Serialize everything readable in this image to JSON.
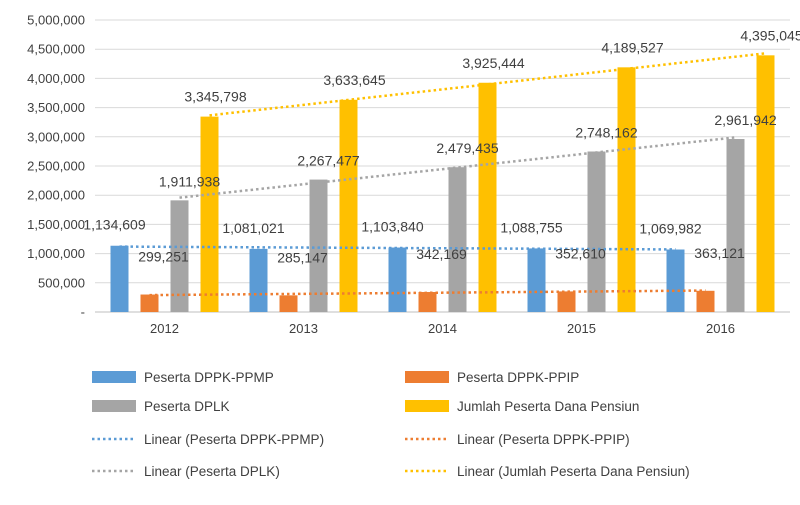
{
  "chart_data": {
    "type": "bar",
    "title": "",
    "xlabel": "",
    "ylabel": "",
    "categories": [
      "2012",
      "2013",
      "2014",
      "2015",
      "2016"
    ],
    "ylim": [
      0,
      5000000
    ],
    "yticks": [
      0,
      500000,
      1000000,
      1500000,
      2000000,
      2500000,
      3000000,
      3500000,
      4000000,
      4500000,
      5000000
    ],
    "ytick_labels": [
      "-",
      "500,000",
      "1,000,000",
      "1,500,000",
      "2,000,000",
      "2,500,000",
      "3,000,000",
      "3,500,000",
      "4,000,000",
      "4,500,000",
      "5,000,000"
    ],
    "grid": true,
    "legend_position": "bottom",
    "series": [
      {
        "name": "Peserta DPPK-PPMP",
        "color": "#5B9BD5",
        "values": [
          1134609,
          1081021,
          1103840,
          1088755,
          1069982
        ],
        "labels": [
          "1,134,609",
          "1,081,021",
          "1,103,840",
          "1,088,755",
          "1,069,982"
        ]
      },
      {
        "name": "Peserta DPPK-PPIP",
        "color": "#ED7D31",
        "values": [
          299251,
          285147,
          342169,
          352610,
          363121
        ],
        "labels": [
          "299,251",
          "285,147",
          "342,169",
          "352,610",
          "363,121"
        ]
      },
      {
        "name": "Peserta DPLK",
        "color": "#A5A5A5",
        "values": [
          1911938,
          2267477,
          2479435,
          2748162,
          2961942
        ],
        "labels": [
          "1,911,938",
          "2,267,477",
          "2,479,435",
          "2,748,162",
          "2,961,942"
        ]
      },
      {
        "name": "Jumlah Peserta Dana Pensiun",
        "color": "#FFC000",
        "values": [
          3345798,
          3633645,
          3925444,
          4189527,
          4395045
        ],
        "labels": [
          "3,345,798",
          "3,633,645",
          "3,925,444",
          "4,189,527",
          "4,395,045"
        ]
      }
    ],
    "trendlines": [
      {
        "name": "Linear (Peserta DPPK-PPMP)",
        "series_index": 0,
        "color": "#5B9BD5"
      },
      {
        "name": "Linear (Peserta DPPK-PPIP)",
        "series_index": 1,
        "color": "#ED7D31"
      },
      {
        "name": "Linear (Peserta DPLK)",
        "series_index": 2,
        "color": "#A5A5A5"
      },
      {
        "name": "Linear (Jumlah Peserta Dana Pensiun)",
        "series_index": 3,
        "color": "#FFC000"
      }
    ]
  }
}
